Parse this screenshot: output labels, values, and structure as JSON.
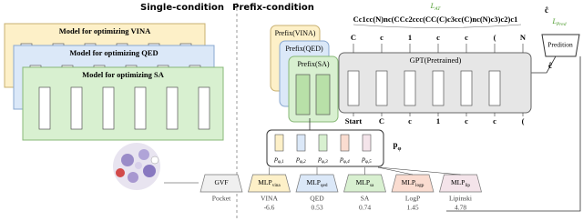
{
  "headers": {
    "single": "Single-condition",
    "prefix": "Prefix-condition"
  },
  "single_models": [
    "Model for optimizing VINA",
    "Model for optimizing QED",
    "Model for optimizing SA"
  ],
  "prefixes": [
    "Prefix(VINA)",
    "Prefix(QED)",
    "Prefix(SA)"
  ],
  "gpt": "GPT(Pretrained)",
  "smiles": "Cc1cc(N)nc(CCc2ccc(CC(C)c3cc(C)nc(N)c3)c2)c1",
  "output_tokens": [
    "C",
    "c",
    "1",
    "c",
    "c",
    "(",
    "N"
  ],
  "input_tokens": [
    "Start",
    "C",
    "c",
    "1",
    "c",
    "c",
    "("
  ],
  "loss_at": {
    "base": "L",
    "sub": "AT"
  },
  "loss_pred": {
    "base": "L",
    "sub": "Pred"
  },
  "c_true": "ĉ",
  "c_hat": "ĉ",
  "prediction": "Predition",
  "p_phi": {
    "base": "p",
    "sub": "φ"
  },
  "p_phi_items": [
    {
      "base": "p",
      "sub": "φ,1"
    },
    {
      "base": "p",
      "sub": "φ,2"
    },
    {
      "base": "p",
      "sub": "φ,3"
    },
    {
      "base": "p",
      "sub": "φ,4"
    },
    {
      "base": "p",
      "sub": "φ,5"
    }
  ],
  "encoders": [
    {
      "base": "GVF"
    },
    {
      "base": "MLP",
      "sub": "vina"
    },
    {
      "base": "MLP",
      "sub": "qed"
    },
    {
      "base": "MLP",
      "sub": "sa"
    },
    {
      "base": "MLP",
      "sub": "logp"
    },
    {
      "base": "MLP",
      "sub": "lip"
    }
  ],
  "conditions": [
    {
      "name": "Pocket"
    },
    {
      "name": "VINA",
      "value": -6.6
    },
    {
      "name": "QED",
      "value": 0.53
    },
    {
      "name": "SA",
      "value": 0.74
    },
    {
      "name": "LogP",
      "value": 1.45
    },
    {
      "name": "Lipinski",
      "value": 4.78
    }
  ]
}
